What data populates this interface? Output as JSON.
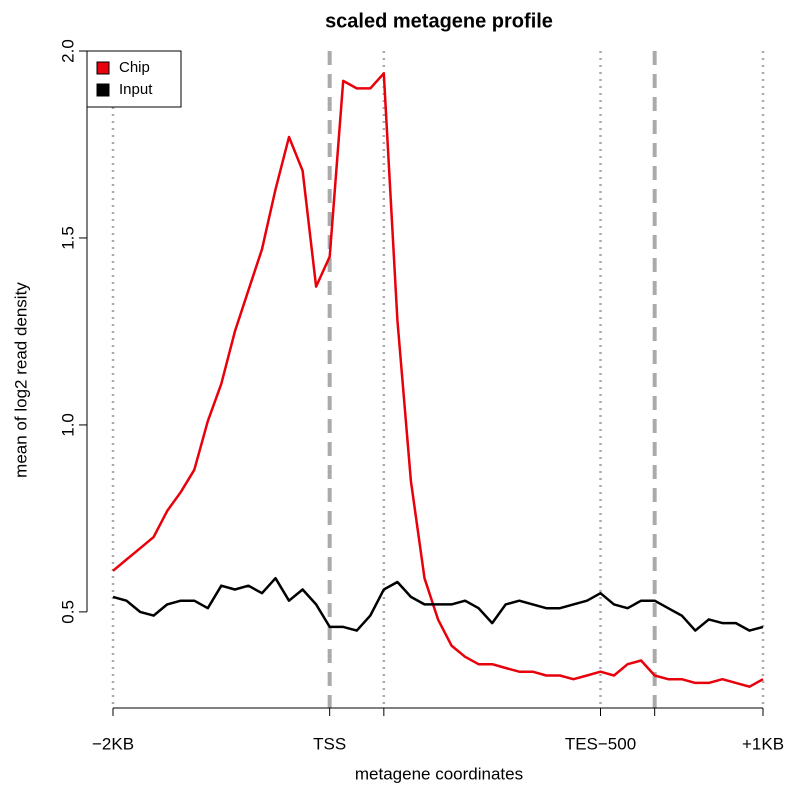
{
  "chart_data": {
    "type": "line",
    "title": "scaled metagene profile",
    "xlabel": "metagene coordinates",
    "ylabel": "mean of log2 read density",
    "x": [
      0,
      0.25,
      0.5,
      0.75,
      1,
      1.25,
      1.5,
      1.75,
      2,
      2.25,
      2.5,
      2.75,
      3,
      3.25,
      3.5,
      3.75,
      4,
      4.25,
      4.5,
      4.75,
      5,
      5.25,
      5.5,
      5.75,
      6,
      6.25,
      6.5,
      6.75,
      7,
      7.25,
      7.5,
      7.75,
      8,
      8.25,
      8.5,
      8.75,
      9,
      9.25,
      9.5,
      9.75,
      10,
      10.25,
      10.5,
      10.75,
      11,
      11.25,
      11.5,
      11.75,
      12
    ],
    "series": [
      {
        "name": "Chip",
        "color": "#e8000b",
        "values": [
          0.61,
          0.64,
          0.67,
          0.7,
          0.77,
          0.82,
          0.88,
          1.01,
          1.11,
          1.25,
          1.36,
          1.47,
          1.63,
          1.77,
          1.68,
          1.37,
          1.45,
          1.92,
          1.9,
          1.9,
          1.94,
          1.28,
          0.85,
          0.59,
          0.48,
          0.41,
          0.38,
          0.36,
          0.36,
          0.35,
          0.34,
          0.34,
          0.33,
          0.33,
          0.32,
          0.33,
          0.34,
          0.33,
          0.36,
          0.37,
          0.33,
          0.32,
          0.32,
          0.31,
          0.31,
          0.32,
          0.31,
          0.3,
          0.32
        ]
      },
      {
        "name": "Input",
        "color": "#000000",
        "values": [
          0.54,
          0.53,
          0.5,
          0.49,
          0.52,
          0.53,
          0.53,
          0.51,
          0.57,
          0.56,
          0.57,
          0.55,
          0.59,
          0.53,
          0.56,
          0.52,
          0.46,
          0.46,
          0.45,
          0.49,
          0.56,
          0.58,
          0.54,
          0.52,
          0.52,
          0.52,
          0.53,
          0.51,
          0.47,
          0.52,
          0.53,
          0.52,
          0.51,
          0.51,
          0.52,
          0.53,
          0.55,
          0.52,
          0.51,
          0.53,
          0.53,
          0.51,
          0.49,
          0.45,
          0.48,
          0.47,
          0.47,
          0.45,
          0.46
        ]
      }
    ],
    "xlim": [
      -0.48,
      12.48
    ],
    "ylim": [
      0.243,
      2.0
    ],
    "xticks": [
      {
        "value": 0,
        "label": "−2KB"
      },
      {
        "value": 4,
        "label": "TSS"
      },
      {
        "value": 9,
        "label": "TES−500"
      },
      {
        "value": 12,
        "label": "+1KB"
      }
    ],
    "xticks_unlabeled": [
      5,
      10
    ],
    "yticks": [
      0.5,
      {
        "value": 1,
        "label": "1.0"
      },
      1.5,
      {
        "value": 2,
        "label": "2.0"
      }
    ],
    "vlines_dotted": [
      0,
      5,
      9,
      12
    ],
    "vlines_dashed": [
      4,
      10
    ],
    "legend": "top-left"
  }
}
